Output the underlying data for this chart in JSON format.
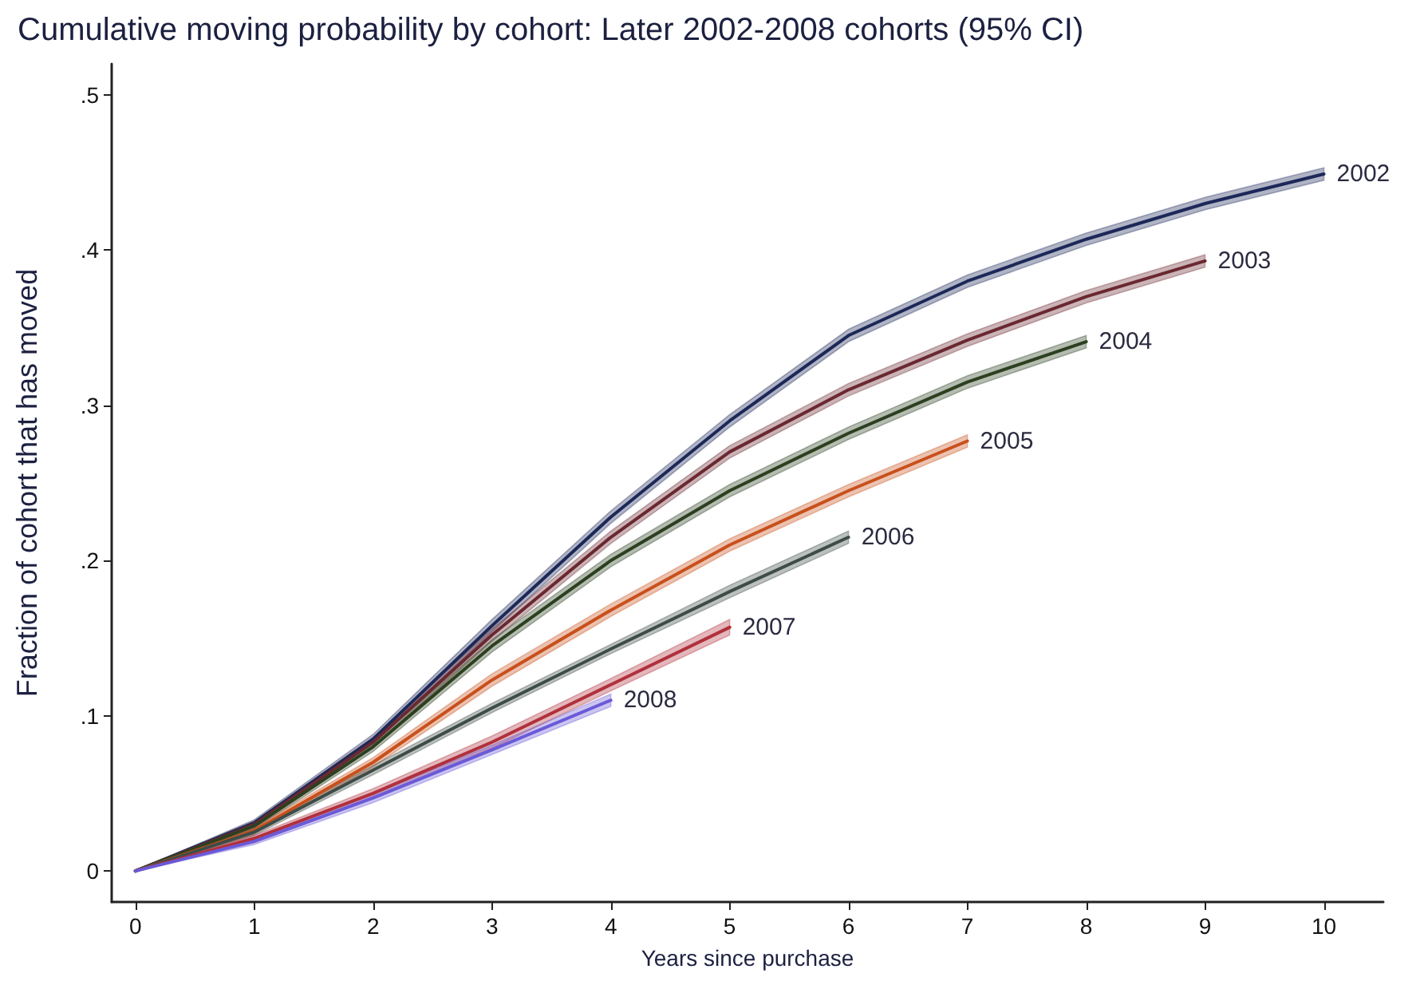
{
  "chart_data": {
    "type": "line",
    "title": "Cumulative moving probability by cohort: Later 2002-2008 cohorts (95% CI)",
    "xlabel": "Years since purchase",
    "ylabel": "Fraction of cohort that has moved",
    "series": [
      {
        "name": "2002",
        "color": "#1c2858",
        "x": [
          0,
          1,
          2,
          3,
          4,
          5,
          6,
          7,
          8,
          9,
          10
        ],
        "values": [
          0,
          0.031,
          0.085,
          0.158,
          0.228,
          0.29,
          0.345,
          0.38,
          0.407,
          0.43,
          0.449
        ],
        "lower": [
          0,
          0.029,
          0.082,
          0.154,
          0.224,
          0.286,
          0.341,
          0.376,
          0.403,
          0.426,
          0.445
        ],
        "upper": [
          0,
          0.033,
          0.088,
          0.162,
          0.232,
          0.294,
          0.349,
          0.384,
          0.411,
          0.434,
          0.453
        ]
      },
      {
        "name": "2003",
        "color": "#6a2830",
        "x": [
          0,
          1,
          2,
          3,
          4,
          5,
          6,
          7,
          8,
          9
        ],
        "values": [
          0,
          0.03,
          0.083,
          0.152,
          0.215,
          0.27,
          0.31,
          0.342,
          0.37,
          0.393
        ],
        "lower": [
          0,
          0.028,
          0.08,
          0.148,
          0.211,
          0.266,
          0.306,
          0.338,
          0.366,
          0.389
        ],
        "upper": [
          0,
          0.032,
          0.086,
          0.156,
          0.219,
          0.274,
          0.314,
          0.346,
          0.374,
          0.397
        ]
      },
      {
        "name": "2004",
        "color": "#2c4020",
        "x": [
          0,
          1,
          2,
          3,
          4,
          5,
          6,
          7,
          8
        ],
        "values": [
          0,
          0.029,
          0.08,
          0.145,
          0.2,
          0.245,
          0.282,
          0.315,
          0.341
        ],
        "lower": [
          0,
          0.027,
          0.077,
          0.141,
          0.196,
          0.241,
          0.278,
          0.311,
          0.337
        ],
        "upper": [
          0,
          0.031,
          0.083,
          0.149,
          0.204,
          0.249,
          0.286,
          0.319,
          0.345
        ]
      },
      {
        "name": "2005",
        "color": "#c8501c",
        "x": [
          0,
          1,
          2,
          3,
          4,
          5,
          6,
          7
        ],
        "values": [
          0,
          0.026,
          0.07,
          0.123,
          0.168,
          0.21,
          0.245,
          0.277
        ],
        "lower": [
          0,
          0.024,
          0.067,
          0.119,
          0.164,
          0.206,
          0.241,
          0.273
        ],
        "upper": [
          0,
          0.028,
          0.073,
          0.127,
          0.172,
          0.214,
          0.249,
          0.281
        ]
      },
      {
        "name": "2006",
        "color": "#3e4c48",
        "x": [
          0,
          1,
          2,
          3,
          4,
          5,
          6
        ],
        "values": [
          0,
          0.025,
          0.065,
          0.105,
          0.143,
          0.18,
          0.215
        ],
        "lower": [
          0,
          0.023,
          0.062,
          0.102,
          0.14,
          0.176,
          0.211
        ],
        "upper": [
          0,
          0.027,
          0.068,
          0.108,
          0.146,
          0.184,
          0.219
        ]
      },
      {
        "name": "2007",
        "color": "#b0303c",
        "x": [
          0,
          1,
          2,
          3,
          4,
          5
        ],
        "values": [
          0,
          0.021,
          0.05,
          0.083,
          0.12,
          0.157
        ],
        "lower": [
          0,
          0.019,
          0.047,
          0.079,
          0.116,
          0.152
        ],
        "upper": [
          0,
          0.023,
          0.053,
          0.087,
          0.124,
          0.162
        ]
      },
      {
        "name": "2008",
        "color": "#6a5ad8",
        "x": [
          0,
          1,
          2,
          3,
          4
        ],
        "values": [
          0,
          0.019,
          0.047,
          0.078,
          0.11
        ],
        "lower": [
          0,
          0.017,
          0.044,
          0.075,
          0.106
        ],
        "upper": [
          0,
          0.021,
          0.05,
          0.081,
          0.114
        ]
      }
    ],
    "xlim": [
      -0.2,
      10.5
    ],
    "xticks": [
      0,
      1,
      2,
      3,
      4,
      5,
      6,
      7,
      8,
      9,
      10
    ],
    "ylim": [
      -0.02,
      0.52
    ],
    "yticks": [
      0,
      {
        "value": 0.1,
        "label": ".1"
      },
      {
        "value": 0.2,
        "label": ".2"
      },
      {
        "value": 0.3,
        "label": ".3"
      },
      {
        "value": 0.4,
        "label": ".4"
      },
      {
        "value": 0.5,
        "label": ".5"
      }
    ],
    "grid": false,
    "legend": false,
    "marker": "none",
    "line_style": "solid"
  }
}
